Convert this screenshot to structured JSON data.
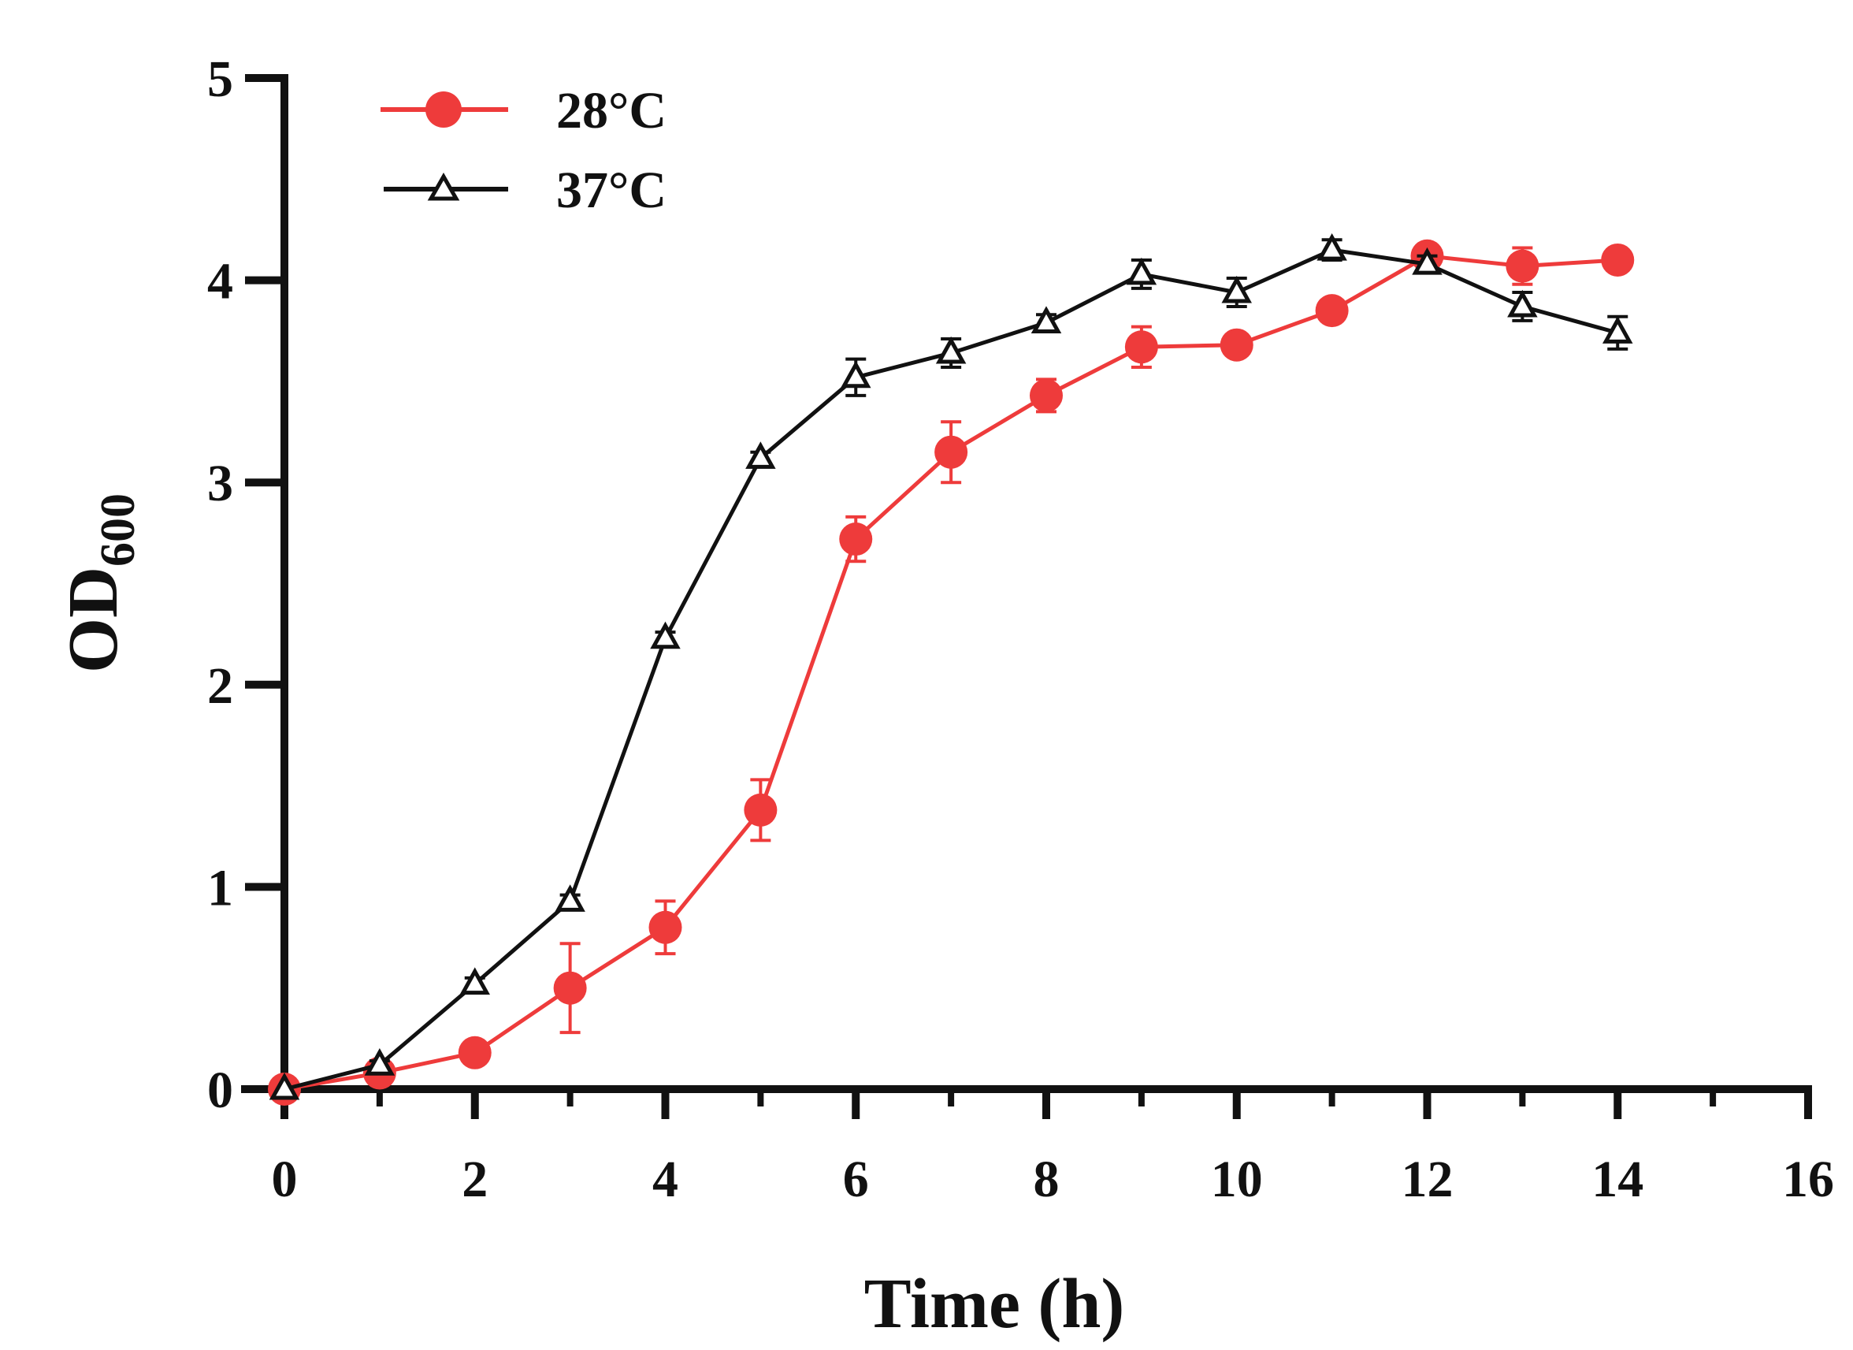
{
  "chart_data": {
    "type": "line",
    "title": "",
    "xlabel": "Time (h)",
    "ylabel": {
      "main": "OD",
      "subscript": "600"
    },
    "xlim": [
      0,
      16
    ],
    "ylim": [
      0,
      5
    ],
    "xticks": [
      0,
      2,
      4,
      6,
      8,
      10,
      12,
      14,
      16
    ],
    "xticks_minor": [
      1,
      3,
      5,
      7,
      9,
      11,
      13,
      15
    ],
    "yticks": [
      0,
      1,
      2,
      3,
      4,
      5
    ],
    "grid": false,
    "legend_position": "top-left",
    "series": [
      {
        "name": "28°C",
        "color": "#ee3b3b",
        "marker": "filled-circle",
        "x": [
          0,
          1,
          2,
          3,
          4,
          5,
          6,
          7,
          8,
          9,
          10,
          11,
          12,
          13,
          14
        ],
        "y": [
          0.0,
          0.08,
          0.18,
          0.5,
          0.8,
          1.38,
          2.72,
          3.15,
          3.43,
          3.67,
          3.68,
          3.85,
          4.12,
          4.07,
          4.1
        ],
        "err": [
          0.0,
          0.02,
          0.03,
          0.22,
          0.13,
          0.15,
          0.11,
          0.15,
          0.08,
          0.1,
          0.04,
          0.04,
          0.04,
          0.09,
          0.03
        ]
      },
      {
        "name": "37°C",
        "color": "#111111",
        "marker": "open-triangle",
        "x": [
          0,
          1,
          2,
          3,
          4,
          5,
          6,
          7,
          8,
          9,
          10,
          11,
          12,
          13,
          14
        ],
        "y": [
          0.0,
          0.12,
          0.52,
          0.93,
          2.23,
          3.12,
          3.52,
          3.64,
          3.79,
          4.03,
          3.94,
          4.15,
          4.08,
          3.87,
          3.74
        ],
        "err": [
          0.0,
          0.02,
          0.03,
          0.03,
          0.03,
          0.03,
          0.09,
          0.07,
          0.04,
          0.07,
          0.07,
          0.05,
          0.04,
          0.07,
          0.08
        ]
      }
    ]
  }
}
